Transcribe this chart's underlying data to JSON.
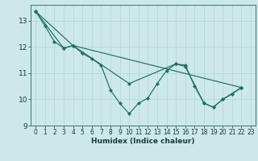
{
  "title": "",
  "xlabel": "Humidex (Indice chaleur)",
  "background_color": "#cde8e8",
  "grid_color": "#b8d8d5",
  "line_color": "#1a7068",
  "xlim": [
    -0.5,
    23.5
  ],
  "ylim": [
    9.0,
    13.6
  ],
  "yticks": [
    9,
    10,
    11,
    12,
    13
  ],
  "xticks": [
    0,
    1,
    2,
    3,
    4,
    5,
    6,
    7,
    8,
    9,
    10,
    11,
    12,
    13,
    14,
    15,
    16,
    17,
    18,
    19,
    20,
    21,
    22,
    23
  ],
  "line1": [
    [
      0,
      13.35
    ],
    [
      1,
      12.8
    ],
    [
      2,
      12.2
    ],
    [
      3,
      11.95
    ],
    [
      4,
      12.05
    ],
    [
      5,
      11.75
    ],
    [
      6,
      11.55
    ],
    [
      7,
      11.3
    ],
    [
      8,
      10.35
    ],
    [
      9,
      9.85
    ],
    [
      10,
      9.45
    ],
    [
      11,
      9.85
    ],
    [
      12,
      10.05
    ],
    [
      13,
      10.6
    ],
    [
      14,
      11.1
    ],
    [
      15,
      11.35
    ],
    [
      16,
      11.3
    ],
    [
      17,
      10.5
    ],
    [
      18,
      9.85
    ],
    [
      19,
      9.7
    ],
    [
      20,
      10.0
    ],
    [
      21,
      10.2
    ],
    [
      22,
      10.45
    ]
  ],
  "line2": [
    [
      0,
      13.35
    ],
    [
      3,
      11.95
    ],
    [
      4,
      12.05
    ],
    [
      22,
      10.45
    ]
  ],
  "line3": [
    [
      0,
      13.35
    ],
    [
      4,
      12.05
    ],
    [
      10,
      10.6
    ],
    [
      15,
      11.35
    ],
    [
      16,
      11.25
    ],
    [
      18,
      9.85
    ],
    [
      19,
      9.7
    ],
    [
      20,
      10.0
    ],
    [
      22,
      10.45
    ]
  ]
}
